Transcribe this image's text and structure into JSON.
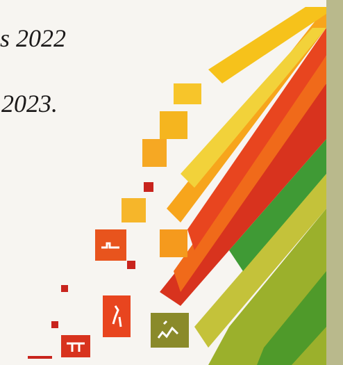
{
  "lines": [
    "s 2022",
    "2023."
  ]
}
